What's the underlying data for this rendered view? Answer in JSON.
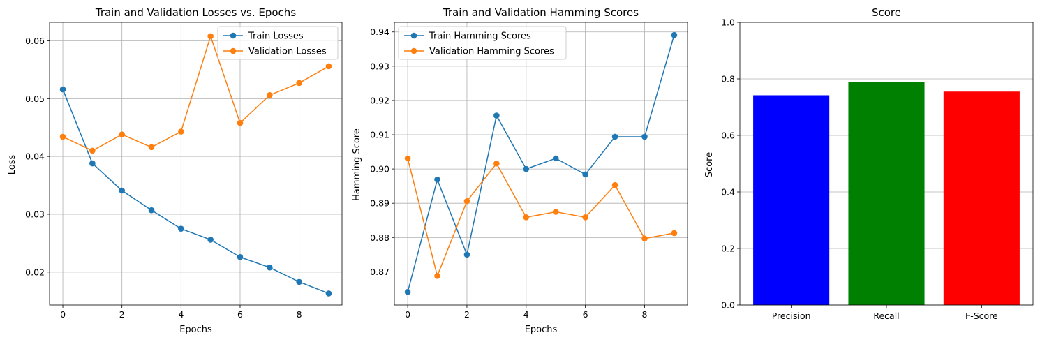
{
  "chart_data": [
    {
      "type": "line",
      "title": "Train and Validation Losses vs. Epochs",
      "xlabel": "Epochs",
      "ylabel": "Loss",
      "xlim": [
        -0.45,
        9.45
      ],
      "ylim": [
        0.0143,
        0.0632
      ],
      "xticks": [
        0,
        2,
        4,
        6,
        8
      ],
      "xtick_labels": [
        "0",
        "2",
        "4",
        "6",
        "8"
      ],
      "yticks": [
        0.02,
        0.03,
        0.04,
        0.05,
        0.06
      ],
      "ytick_labels": [
        "0.02",
        "0.03",
        "0.04",
        "0.05",
        "0.06"
      ],
      "grid": true,
      "legend": "top-right",
      "x": [
        0,
        1,
        2,
        3,
        4,
        5,
        6,
        7,
        8,
        9
      ],
      "series": [
        {
          "name": "Train Losses",
          "color": "#1f77b4",
          "values": [
            0.0516,
            0.0388,
            0.0341,
            0.0307,
            0.0275,
            0.0256,
            0.0226,
            0.0208,
            0.0183,
            0.0163
          ]
        },
        {
          "name": "Validation Losses",
          "color": "#ff7f0e",
          "values": [
            0.0434,
            0.041,
            0.0438,
            0.0416,
            0.0443,
            0.0608,
            0.0458,
            0.0506,
            0.0527,
            0.0556
          ]
        }
      ]
    },
    {
      "type": "line",
      "title": "Train and Validation Hamming Scores",
      "xlabel": "Epochs",
      "ylabel": "Hamming Score",
      "xlim": [
        -0.45,
        9.45
      ],
      "ylim": [
        0.8603,
        0.9428
      ],
      "xticks": [
        0,
        2,
        4,
        6,
        8
      ],
      "xtick_labels": [
        "0",
        "2",
        "4",
        "6",
        "8"
      ],
      "yticks": [
        0.87,
        0.88,
        0.89,
        0.9,
        0.91,
        0.92,
        0.93,
        0.94
      ],
      "ytick_labels": [
        "0.87",
        "0.88",
        "0.89",
        "0.90",
        "0.91",
        "0.92",
        "0.93",
        "0.94"
      ],
      "grid": true,
      "legend": "top-left",
      "x": [
        0,
        1,
        2,
        3,
        4,
        5,
        6,
        7,
        8,
        9
      ],
      "series": [
        {
          "name": "Train Hamming Scores",
          "color": "#1f77b4",
          "values": [
            0.8641,
            0.8969,
            0.875,
            0.9156,
            0.9,
            0.9031,
            0.8984,
            0.9094,
            0.9094,
            0.9391
          ]
        },
        {
          "name": "Validation Hamming Scores",
          "color": "#ff7f0e",
          "values": [
            0.9031,
            0.8688,
            0.8906,
            0.9016,
            0.8859,
            0.8875,
            0.8859,
            0.8953,
            0.8797,
            0.8813
          ]
        }
      ]
    },
    {
      "type": "bar",
      "title": "Score",
      "xlabel": "",
      "ylabel": "Score",
      "ylim": [
        0,
        1.0
      ],
      "yticks": [
        0,
        0.2,
        0.4,
        0.6,
        0.8,
        1.0
      ],
      "ytick_labels": [
        "0.0",
        "0.2",
        "0.4",
        "0.6",
        "0.8",
        "1.0"
      ],
      "grid": "y",
      "categories": [
        "Precision",
        "Recall",
        "F-Score"
      ],
      "values": [
        0.742,
        0.789,
        0.755
      ],
      "colors": [
        "#0000ff",
        "#008000",
        "#ff0000"
      ]
    }
  ]
}
